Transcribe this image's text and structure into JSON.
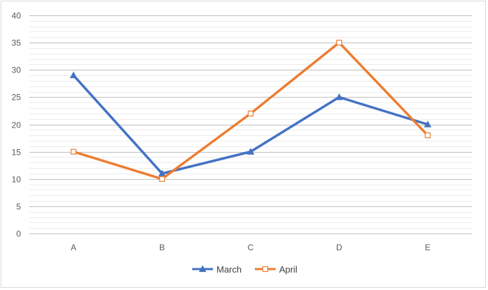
{
  "chart_data": {
    "type": "line",
    "categories": [
      "A",
      "B",
      "C",
      "D",
      "E"
    ],
    "series": [
      {
        "name": "March",
        "values": [
          29,
          11,
          15,
          25,
          20
        ],
        "color": "#4472C4",
        "marker": "triangle"
      },
      {
        "name": "April",
        "values": [
          15,
          10,
          22,
          35,
          18
        ],
        "color": "#ED7D31",
        "marker": "square"
      }
    ],
    "ylim": [
      0,
      40
    ],
    "yticks": [
      0,
      5,
      10,
      15,
      20,
      25,
      30,
      35,
      40
    ],
    "minor_step": 1,
    "grid": true,
    "legend": "bottom"
  }
}
